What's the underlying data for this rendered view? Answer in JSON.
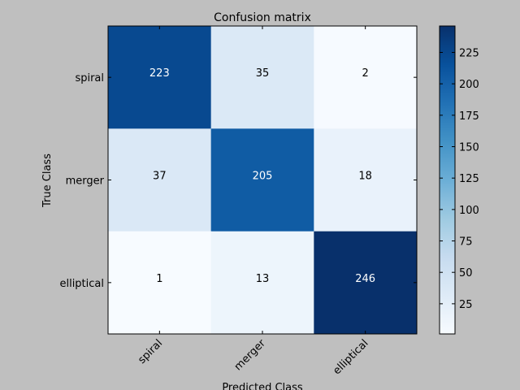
{
  "chart_data": {
    "type": "heatmap",
    "title": "Confusion matrix",
    "xlabel": "Predicted Class",
    "ylabel": "True Class",
    "x_categories": [
      "spiral",
      "merger",
      "elliptical"
    ],
    "y_categories": [
      "spiral",
      "merger",
      "elliptical"
    ],
    "values": [
      [
        223,
        35,
        2
      ],
      [
        37,
        205,
        18
      ],
      [
        1,
        13,
        246
      ]
    ],
    "colormap": "Blues",
    "colorbar": {
      "min": 1,
      "max": 246,
      "ticks": [
        25,
        50,
        75,
        100,
        125,
        150,
        175,
        200,
        225
      ]
    },
    "colors": {
      "background": "#bfbfbf",
      "colormap_low": "#f7fbff",
      "colormap_high": "#08306b"
    }
  }
}
